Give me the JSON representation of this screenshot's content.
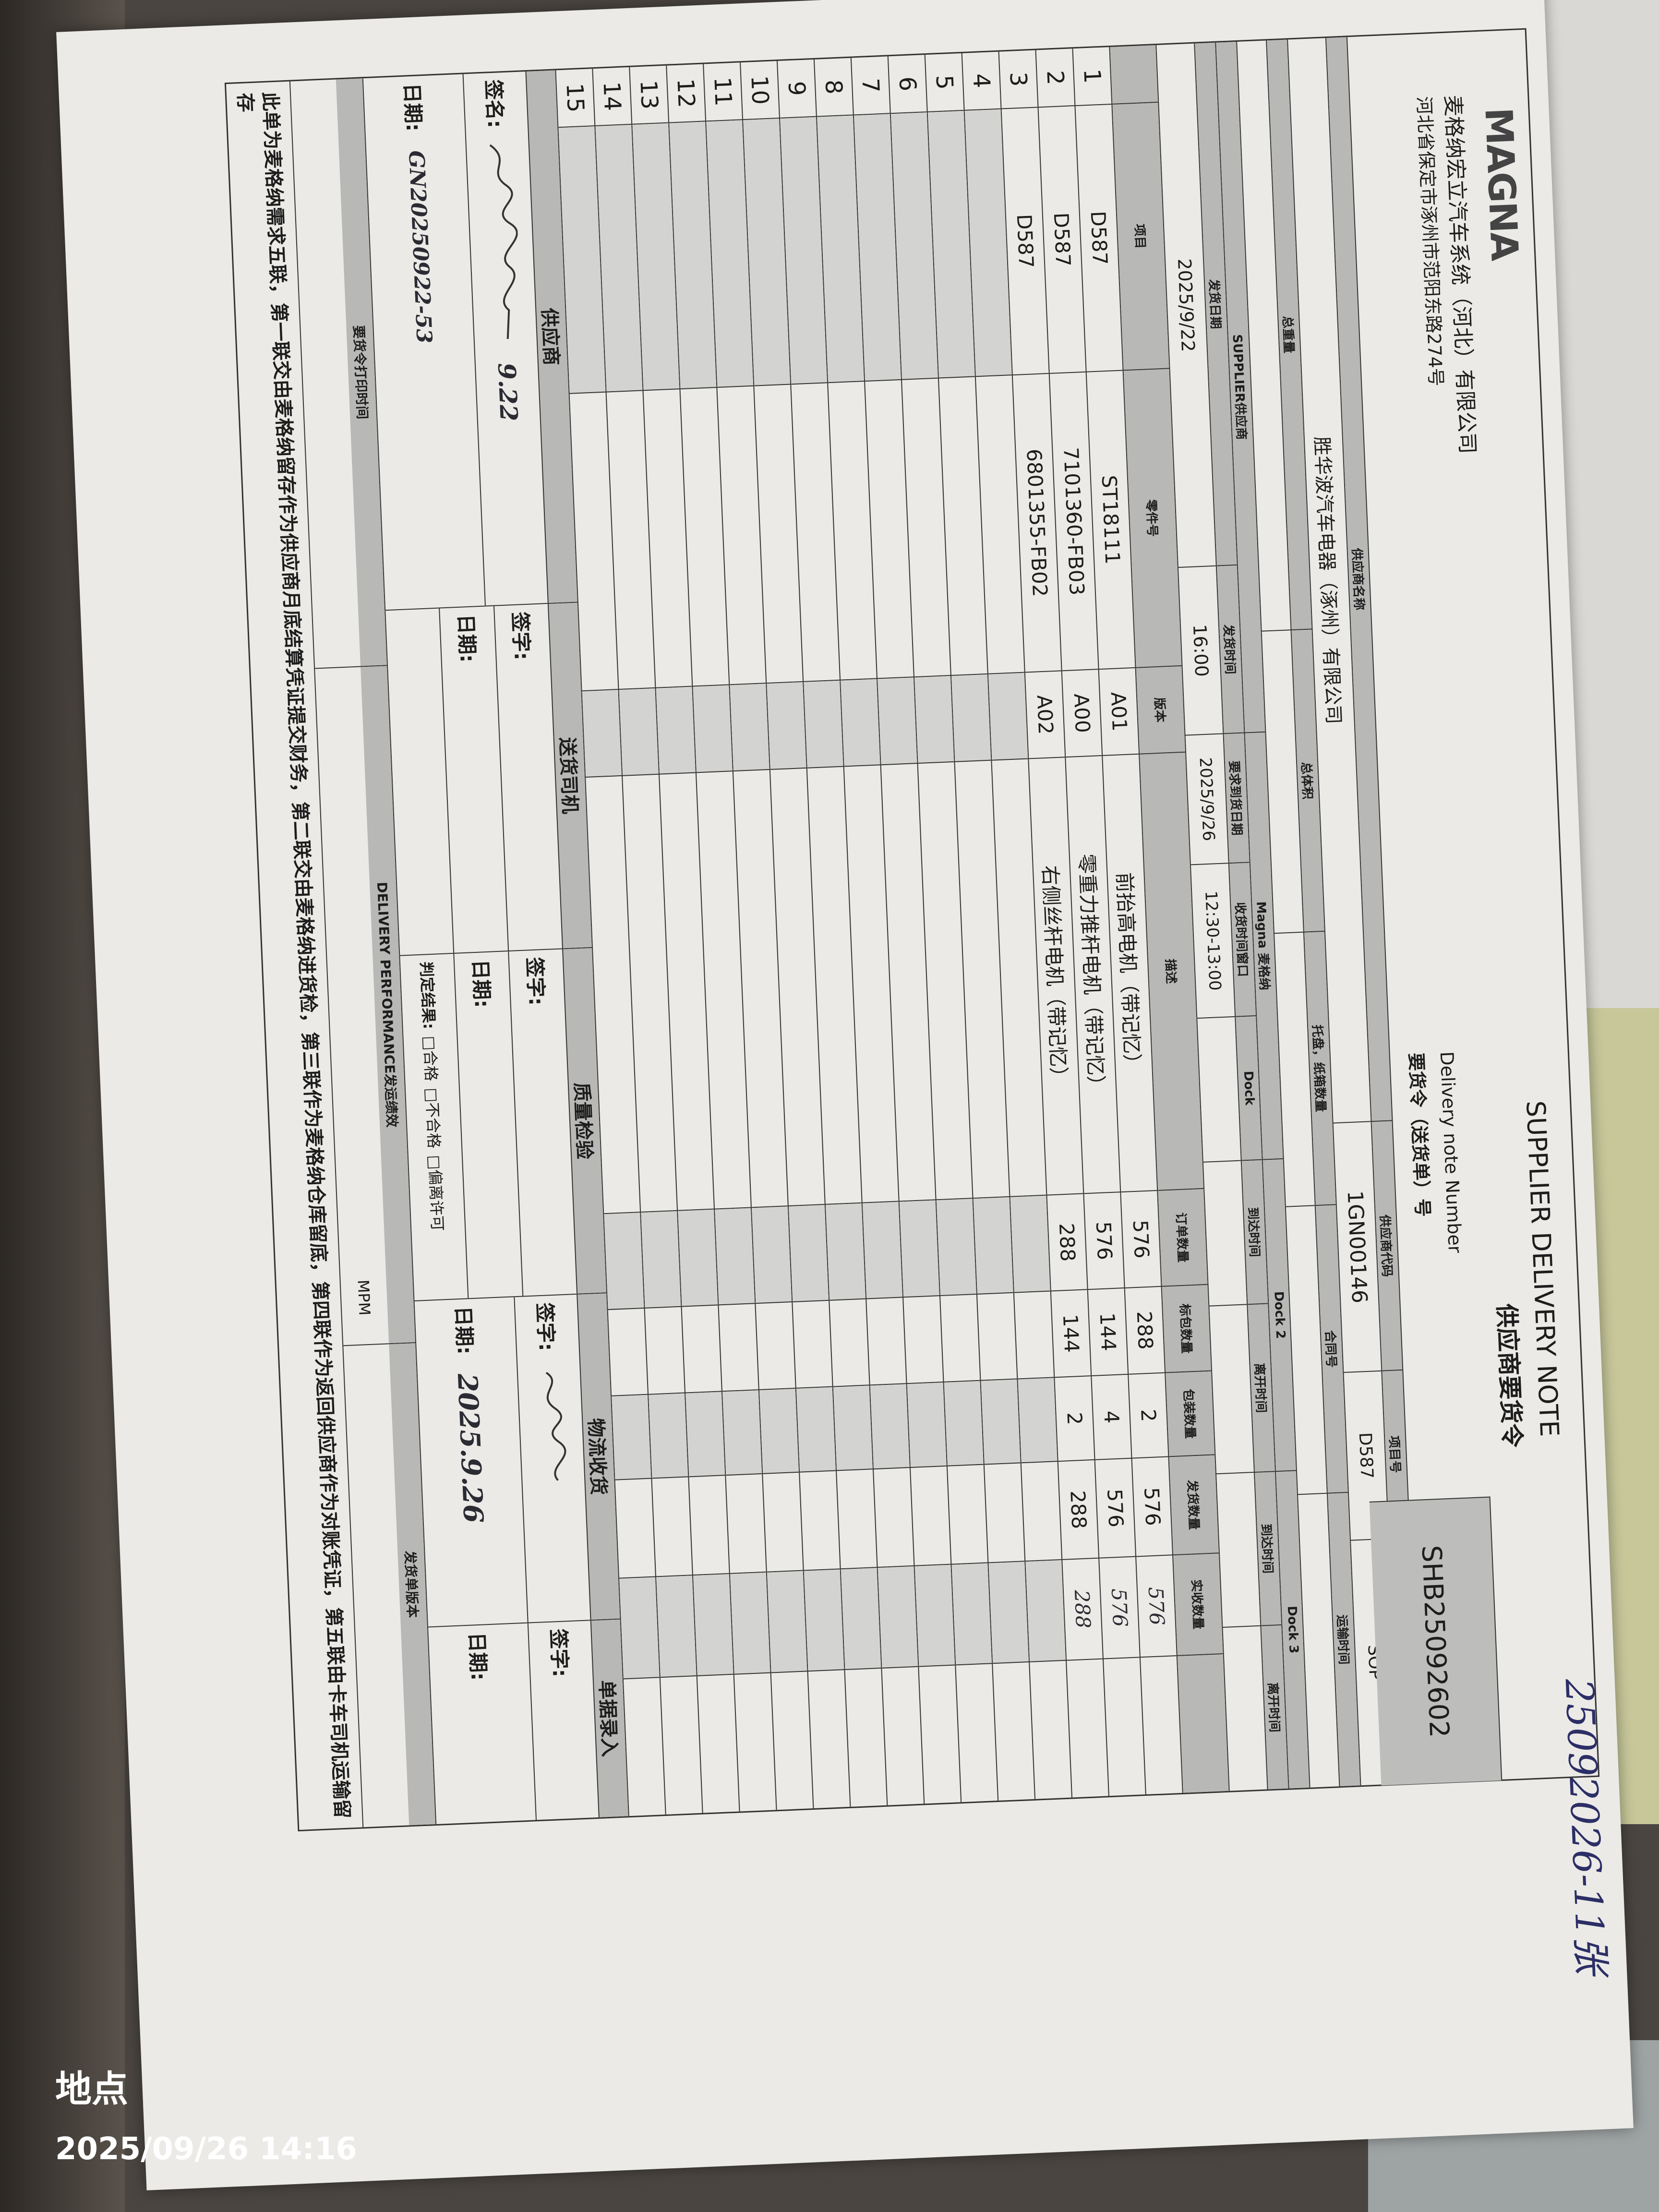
{
  "header": {
    "logo": "MAGNA",
    "company": "麦格纳宏立汽车系统（河北）有限公司",
    "address": "河北省保定市涿州市范阳东路274号",
    "title_en": "SUPPLIER DELIVERY NOTE",
    "title_cn": "供应商要货令",
    "dn_label_en": "Delivery note Number",
    "dn_label_cn": "要货令（送货单）号",
    "dn_number": "SHB25092602"
  },
  "supplier_info": {
    "name_label": "供应商名称",
    "name": "胜华波汽车电器（涿州）有限公司",
    "code_label": "供应商代码",
    "code": "1GN00146",
    "project_label": "项目号",
    "project": "D587",
    "version_label": "版本",
    "version": "SOP"
  },
  "shipping": {
    "weight_label": "总重量",
    "volume_label": "总体积",
    "pallet_label": "托盘，纸箱数量",
    "contract_label": "合同号",
    "transport_label": "运输时间"
  },
  "schedule": {
    "supplier_group": "SUPPLIER供应商",
    "magna_group": "Magna 麦格纳",
    "dock2_group": "Dock 2",
    "dock3_group": "Dock 3",
    "ship_date_label": "发货日期",
    "ship_date": "2025/9/22",
    "ship_time_label": "发货时间",
    "ship_time": "16:00",
    "req_date_label": "要求到货日期",
    "req_date": "2025/9/26",
    "window_label": "收货时间窗口",
    "window": "12:30-13:00",
    "dock_label": "Dock",
    "arrive_label": "到达时间",
    "leave_label": "离开时间"
  },
  "lines": {
    "headers": [
      "",
      "项目",
      "零件号",
      "版本",
      "描述",
      "订单数量",
      "标包数量",
      "包装数量",
      "发货数量",
      "实收数量",
      ""
    ],
    "rows": [
      {
        "no": "1",
        "project": "D587",
        "part": "ST18111",
        "rev": "A01",
        "desc": "前抬高电机（带记忆）",
        "order_qty": "576",
        "std_pack": "288",
        "packs": "2",
        "ship_qty": "576",
        "received": "576"
      },
      {
        "no": "2",
        "project": "D587",
        "part": "7101360-FB03",
        "rev": "A00",
        "desc": "零重力推杆电机（带记忆）",
        "order_qty": "576",
        "std_pack": "144",
        "packs": "4",
        "ship_qty": "576",
        "received": "576"
      },
      {
        "no": "3",
        "project": "D587",
        "part": "6801355-FB02",
        "rev": "A02",
        "desc": "右侧丝杆电机（带记忆）",
        "order_qty": "288",
        "std_pack": "144",
        "packs": "2",
        "ship_qty": "288",
        "received": "288"
      },
      {
        "no": "4"
      },
      {
        "no": "5"
      },
      {
        "no": "6"
      },
      {
        "no": "7"
      },
      {
        "no": "8"
      },
      {
        "no": "9"
      },
      {
        "no": "10"
      },
      {
        "no": "11"
      },
      {
        "no": "12"
      },
      {
        "no": "13"
      },
      {
        "no": "14"
      },
      {
        "no": "15"
      }
    ]
  },
  "signatures": {
    "supplier": {
      "title": "供应商",
      "sign_label": "签名:",
      "date_label": "日期:",
      "sign_note": "9.22",
      "date_value": "GN20250922-53"
    },
    "driver": {
      "title": "送货司机",
      "sign_label": "签字:",
      "date_label": "日期:"
    },
    "quality": {
      "title": "质量检验",
      "sign_label": "签字:",
      "date_label": "日期:",
      "result_label": "判定结果:",
      "opt_pass": "□合格",
      "opt_fail": "□不合格",
      "opt_deviation": "□偏离许可"
    },
    "logistics": {
      "title": "物流收货",
      "sign_label": "签字:",
      "date_label": "日期:",
      "date_value": "2025.9.26"
    },
    "entry": {
      "title": "单据录入",
      "sign_label": "签字:",
      "date_label": "日期:"
    }
  },
  "performance": {
    "print_time_label": "要货令打印时间",
    "perf_label": "DELIVERY PERFORMANCE发运绩效",
    "perf_value": "MPM",
    "version_label": "发货单版本"
  },
  "footer": "此单为麦格纳需求五联，第一联交由麦格纳留存作为供应商月底结算凭证提交财务，第二联交由麦格纳进货检，第三联作为麦格纳仓库留底，第四联作为返回供应商作为对账凭证，第五联由卡车司机运输留存",
  "margin_note": "25092026-11张",
  "photo_stamp": {
    "location": "地点",
    "datetime": "2025/09/26 14:16"
  }
}
